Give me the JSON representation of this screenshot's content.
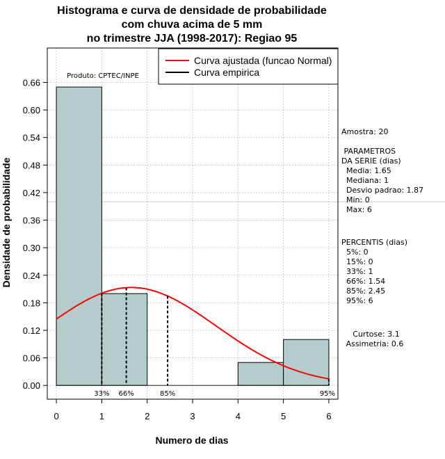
{
  "chart_data": {
    "type": "histogram",
    "title_lines": [
      "Histograma e curva de densidade de probabilidade",
      "com chuva acima de 5 mm",
      "no trimestre JJA (1998-2017): Regiao 95"
    ],
    "xlabel": "Numero de dias",
    "ylabel": "Densidade de probabilidade",
    "xlim": [
      -0.2,
      6.2
    ],
    "ylim": [
      -0.03,
      0.735
    ],
    "x_ticks": [
      0,
      1,
      2,
      3,
      4,
      5,
      6
    ],
    "x_tick_labels": [
      "0",
      "1",
      "2",
      "3",
      "4",
      "5",
      "6"
    ],
    "y_ticks": [
      0.0,
      0.06,
      0.12,
      0.18,
      0.24,
      0.3,
      0.36,
      0.42,
      0.48,
      0.54,
      0.6,
      0.66
    ],
    "y_tick_labels": [
      "0.00",
      "0.06",
      "0.12",
      "0.18",
      "0.24",
      "0.30",
      "0.36",
      "0.42",
      "0.48",
      "0.54",
      "0.60",
      "0.66"
    ],
    "bars": [
      {
        "x0": 0,
        "x1": 1,
        "density": 0.65
      },
      {
        "x0": 1,
        "x1": 2,
        "density": 0.2
      },
      {
        "x0": 2,
        "x1": 3,
        "density": 0.0
      },
      {
        "x0": 3,
        "x1": 4,
        "density": 0.0
      },
      {
        "x0": 4,
        "x1": 5,
        "density": 0.05
      },
      {
        "x0": 5,
        "x1": 6,
        "density": 0.1
      }
    ],
    "normal_curve": {
      "mean": 1.65,
      "sd": 1.87,
      "x_from": 0,
      "x_to": 6
    },
    "horizontal_ref_line": 0.4,
    "percentile_markers": [
      {
        "label": "33%",
        "x": 1.0
      },
      {
        "label": "66%",
        "x": 1.54
      },
      {
        "label": "85%",
        "x": 2.45
      },
      {
        "label": "95%",
        "x": 6.0
      }
    ],
    "legend": [
      {
        "label": "Curva ajustada (funcao Normal)",
        "color": "#ff0000"
      },
      {
        "label": "Curva empirica",
        "color": "#000000"
      }
    ],
    "legend_position": "top-right",
    "colors": {
      "bar_fill": "#b4cccc",
      "curve": "#ff0000",
      "grid": "#bdbdbd"
    }
  },
  "annotations": {
    "product": "Produto: CPTEC/INPE"
  },
  "side_panel": {
    "sample": "Amostra: 20",
    "params_lines": [
      " PARAMETROS",
      "DA SERIE (dias)",
      "  Media: 1.65",
      "  Mediana: 1",
      "  Desvio padrao: 1.87",
      "  Min: 0",
      "  Max: 6"
    ],
    "percentile_lines": [
      "PERCENTIS (dias)",
      "  5%: 0",
      "  15%: 0",
      "  33%: 1",
      "  66%: 1.54",
      "  85%: 2.45",
      "  95%: 6"
    ],
    "shape_lines": [
      "Curtose: 3.1",
      "Assimetria: 0.6"
    ]
  }
}
